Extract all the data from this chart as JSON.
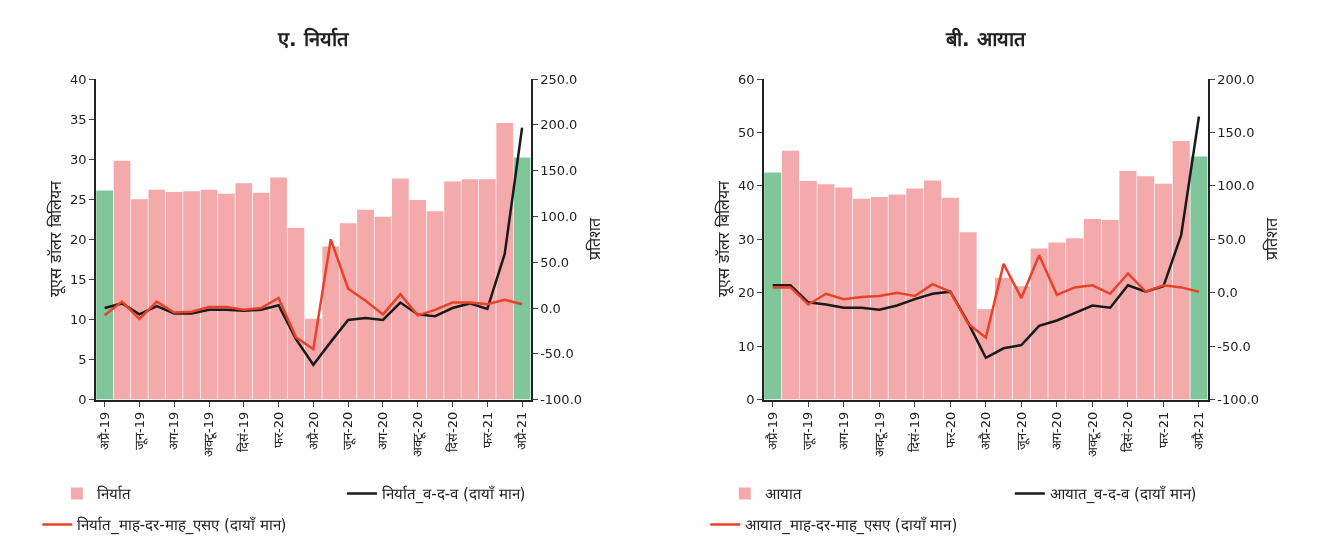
{
  "chart_data": [
    {
      "type": "bar",
      "title": "ए. निर्यात",
      "ylabel": "यूएस डॉलर बिलियन",
      "y2label": "प्रतिशत",
      "categories": [
        "अप्रै-19",
        null,
        "जून-19",
        null,
        "अग-19",
        null,
        "अक्टू-19",
        null,
        "दिसं-19",
        null,
        "फर-20",
        null,
        "अप्रै-20",
        null,
        "जून-20",
        null,
        "अग-20",
        null,
        "अक्टू-20",
        null,
        "दिसं-20",
        null,
        "फर-21",
        null,
        "अप्रै-21"
      ],
      "series": [
        {
          "name": "निर्यात",
          "color": "#f4a9ab",
          "colors": [
            "#7fc79b",
            "#f4a9ab",
            "#f4a9ab",
            "#f4a9ab",
            "#f4a9ab",
            "#f4a9ab",
            "#f4a9ab",
            "#f4a9ab",
            "#f4a9ab",
            "#f4a9ab",
            "#f4a9ab",
            "#f4a9ab",
            "#f4a9ab",
            "#f4a9ab",
            "#f4a9ab",
            "#f4a9ab",
            "#f4a9ab",
            "#f4a9ab",
            "#f4a9ab",
            "#f4a9ab",
            "#f4a9ab",
            "#f4a9ab",
            "#f4a9ab",
            "#f4a9ab",
            "#7fc79b"
          ],
          "values": [
            26.1,
            29.8,
            25.0,
            26.2,
            25.9,
            26.0,
            26.2,
            25.7,
            27.0,
            25.8,
            27.7,
            21.4,
            10.1,
            19.1,
            22.0,
            23.7,
            22.8,
            27.6,
            24.9,
            23.5,
            27.2,
            27.5,
            27.5,
            34.5,
            30.2
          ]
        },
        {
          "type": "line",
          "axis": "y2",
          "name": "निर्यात_व-द-व (दायाँ मान)",
          "color": "#1a1a1a",
          "values": [
            0,
            5,
            -7,
            2,
            -6,
            -6,
            -2,
            -2,
            -3,
            -2,
            3,
            -34,
            -62,
            -37,
            -13,
            -11,
            -13,
            6,
            -7,
            -9,
            0,
            5,
            -1,
            59,
            197
          ]
        },
        {
          "type": "line",
          "axis": "y2",
          "name": "निर्यात_माह-दर-माह_एसए (दायाँ मान)",
          "color": "#e8432a",
          "values": [
            -8,
            7,
            -12,
            7,
            -5,
            -4,
            1,
            1,
            -2,
            0,
            11,
            -32,
            -45,
            75,
            21,
            8,
            -7,
            15,
            -8,
            -2,
            6,
            6,
            4,
            9,
            4
          ]
        }
      ],
      "ylim": [
        0,
        40
      ],
      "yticks": [
        0,
        5,
        10,
        15,
        20,
        25,
        30,
        35,
        40
      ],
      "y2lim": [
        -100,
        250
      ],
      "y2ticks": [
        {
          "value": -100,
          "label": "-100.0"
        },
        {
          "value": -50,
          "label": "-50.0"
        },
        {
          "value": 0,
          "label": "0.0"
        },
        {
          "value": 50,
          "label": "50.0"
        },
        {
          "value": 100,
          "label": "100.0"
        },
        {
          "value": 150,
          "label": "150.0"
        },
        {
          "value": 200,
          "label": "200.0"
        },
        {
          "value": 250,
          "label": "250.0"
        }
      ],
      "legend": "bottom",
      "marker": "none",
      "line_style": "solid"
    },
    {
      "type": "bar",
      "title": "बी. आयात",
      "ylabel": "यूएस डॉलर बिलियन",
      "y2label": "प्रतिशत",
      "categories": [
        "अप्रै-19",
        null,
        "जून-19",
        null,
        "अग-19",
        null,
        "अक्टू-19",
        null,
        "दिसं-19",
        null,
        "फर-20",
        null,
        "अप्रै-20",
        null,
        "जून-20",
        null,
        "अग-20",
        null,
        "अक्टू-20",
        null,
        "दिसं-20",
        null,
        "फर-21",
        null,
        "अप्रै-21"
      ],
      "series": [
        {
          "name": "आयात",
          "color": "#f4a9ab",
          "colors": [
            "#7fc79b",
            "#f4a9ab",
            "#f4a9ab",
            "#f4a9ab",
            "#f4a9ab",
            "#f4a9ab",
            "#f4a9ab",
            "#f4a9ab",
            "#f4a9ab",
            "#f4a9ab",
            "#f4a9ab",
            "#f4a9ab",
            "#f4a9ab",
            "#f4a9ab",
            "#f4a9ab",
            "#f4a9ab",
            "#f4a9ab",
            "#f4a9ab",
            "#f4a9ab",
            "#f4a9ab",
            "#f4a9ab",
            "#f4a9ab",
            "#f4a9ab",
            "#f4a9ab",
            "#7fc79b"
          ],
          "values": [
            42.5,
            46.6,
            40.9,
            40.3,
            39.7,
            37.6,
            37.9,
            38.4,
            39.5,
            41.0,
            37.8,
            31.3,
            16.9,
            22.8,
            21.2,
            28.3,
            29.4,
            30.2,
            33.8,
            33.6,
            42.8,
            41.8,
            40.4,
            48.4,
            45.5
          ]
        },
        {
          "type": "line",
          "axis": "y2",
          "name": "आयात_व-द-व (दायाँ मान)",
          "color": "#1a1a1a",
          "values": [
            7,
            7,
            -9,
            -11,
            -14,
            -14,
            -16,
            -12,
            -6,
            -1,
            1,
            -28,
            -61,
            -52,
            -49,
            -31,
            -26,
            -19,
            -12,
            -14,
            7,
            1,
            6,
            54,
            165
          ]
        },
        {
          "type": "line",
          "axis": "y2",
          "name": "आयात_माह-दर-माह_एसए (दायाँ मान)",
          "color": "#e8432a",
          "values": [
            5,
            5,
            -11,
            -1,
            -6,
            -4,
            -3,
            0,
            -3,
            8,
            1,
            -29,
            -42,
            27,
            -5,
            35,
            -2,
            5,
            7,
            -1,
            18,
            1,
            7,
            5,
            1
          ]
        }
      ],
      "ylim": [
        0,
        60
      ],
      "yticks": [
        0,
        10,
        20,
        30,
        40,
        50,
        60
      ],
      "y2lim": [
        -100,
        200
      ],
      "y2ticks": [
        {
          "value": -100,
          "label": "-100.0"
        },
        {
          "value": -50,
          "label": "-50.0"
        },
        {
          "value": 0,
          "label": "0.0"
        },
        {
          "value": 50,
          "label": "50.0"
        },
        {
          "value": 100,
          "label": "100.0"
        },
        {
          "value": 150,
          "label": "150.0"
        },
        {
          "value": 200,
          "label": "200.0"
        }
      ],
      "legend": "bottom",
      "marker": "none",
      "line_style": "solid"
    }
  ]
}
